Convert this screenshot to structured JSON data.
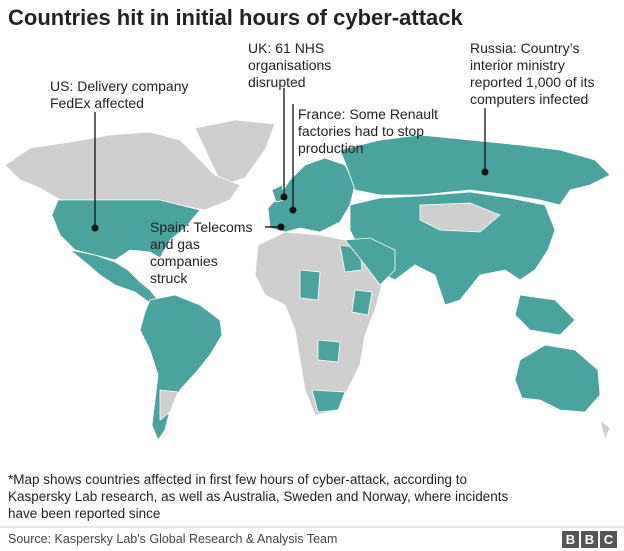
{
  "title": "Countries hit in initial hours of cyber-attack",
  "annotations": [
    {
      "lines": [
        "US: Delivery company",
        "FedEx affected"
      ]
    },
    {
      "lines": [
        "UK: 61 NHS",
        "organisations",
        "disrupted"
      ]
    },
    {
      "lines": [
        "France: Some Renault",
        "factories had to stop",
        "production"
      ]
    },
    {
      "lines": [
        "Spain: Telecoms",
        "and gas",
        "companies",
        "struck"
      ]
    },
    {
      "lines": [
        "Russia: Country’s",
        "interior ministry",
        "reported 1,000 of its",
        "computers infected"
      ]
    }
  ],
  "footnote": [
    "*Map shows countries affected in first few hours of cyber-attack, according to",
    "Kaspersky Lab research, as well as Australia, Sweden and Norway, where incidents",
    "have been reported since"
  ],
  "source": "Source: Kaspersky Lab's Global Research & Analysis Team",
  "logo": [
    "B",
    "B",
    "C"
  ]
}
